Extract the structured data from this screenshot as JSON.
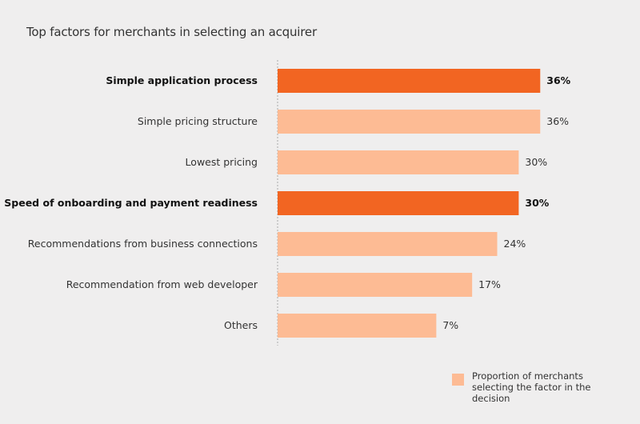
{
  "chart_data": {
    "type": "bar",
    "orientation": "horizontal",
    "title": "Top factors for merchants in selecting an acquirer",
    "categories": [
      "Simple application process",
      "Simple pricing structure",
      "Lowest pricing",
      "Speed of onboarding and payment readiness",
      "Recommendations from business connections",
      "Recommendation from web developer",
      "Others"
    ],
    "values": [
      36,
      36,
      30,
      30,
      24,
      17,
      7
    ],
    "data_labels": [
      "36%",
      "36%",
      "30%",
      "30%",
      "24%",
      "17%",
      "7%"
    ],
    "highlighted": [
      true,
      false,
      false,
      true,
      false,
      false,
      false
    ],
    "legend": {
      "label": "Proportion of merchants selecting the factor in the decision",
      "placement": "bottom-right"
    },
    "colors": {
      "highlight": "#f26522",
      "normal": "#fdbb94",
      "background": "#efeeee"
    },
    "grid": false
  }
}
